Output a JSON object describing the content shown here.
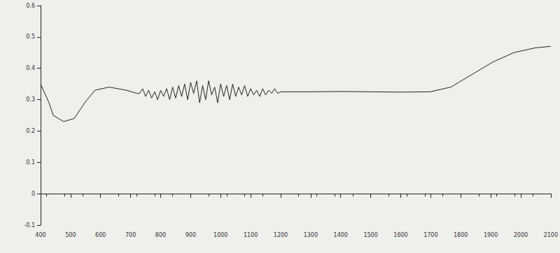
{
  "chart_data": {
    "type": "line",
    "color": "#222222",
    "grid": false,
    "x": [
      400,
      428,
      442,
      477,
      512,
      547,
      581,
      628,
      686,
      721,
      730,
      740,
      750,
      760,
      770,
      780,
      790,
      800,
      810,
      820,
      830,
      840,
      850,
      860,
      870,
      880,
      890,
      900,
      910,
      920,
      930,
      940,
      950,
      960,
      970,
      980,
      990,
      1000,
      1010,
      1020,
      1030,
      1040,
      1050,
      1060,
      1070,
      1080,
      1090,
      1100,
      1110,
      1120,
      1130,
      1140,
      1150,
      1160,
      1170,
      1180,
      1190,
      1200,
      1300,
      1400,
      1500,
      1600,
      1698,
      1767,
      1837,
      1907,
      1977,
      2047,
      2100
    ],
    "values": [
      0.35,
      0.29,
      0.25,
      0.23,
      0.24,
      0.29,
      0.33,
      0.34,
      0.33,
      0.32,
      0.32,
      0.335,
      0.31,
      0.33,
      0.305,
      0.325,
      0.3,
      0.33,
      0.31,
      0.335,
      0.3,
      0.34,
      0.305,
      0.345,
      0.31,
      0.35,
      0.3,
      0.355,
      0.32,
      0.36,
      0.29,
      0.345,
      0.3,
      0.36,
      0.315,
      0.34,
      0.29,
      0.35,
      0.31,
      0.345,
      0.3,
      0.35,
      0.31,
      0.34,
      0.315,
      0.345,
      0.31,
      0.335,
      0.315,
      0.33,
      0.31,
      0.335,
      0.315,
      0.33,
      0.32,
      0.335,
      0.32,
      0.325,
      0.325,
      0.326,
      0.325,
      0.324,
      0.325,
      0.34,
      0.38,
      0.42,
      0.45,
      0.465,
      0.47
    ],
    "xlim": [
      400,
      2100
    ],
    "xticks": [
      400,
      500,
      600,
      700,
      800,
      900,
      1000,
      1100,
      1200,
      1300,
      1400,
      1500,
      1600,
      1700,
      1800,
      1900,
      2000,
      2100
    ],
    "ylim": [
      -0.1,
      0.6
    ],
    "yticks": [
      -0.1,
      0,
      0.1,
      0.2,
      0.3,
      0.4,
      0.5,
      0.6
    ]
  }
}
